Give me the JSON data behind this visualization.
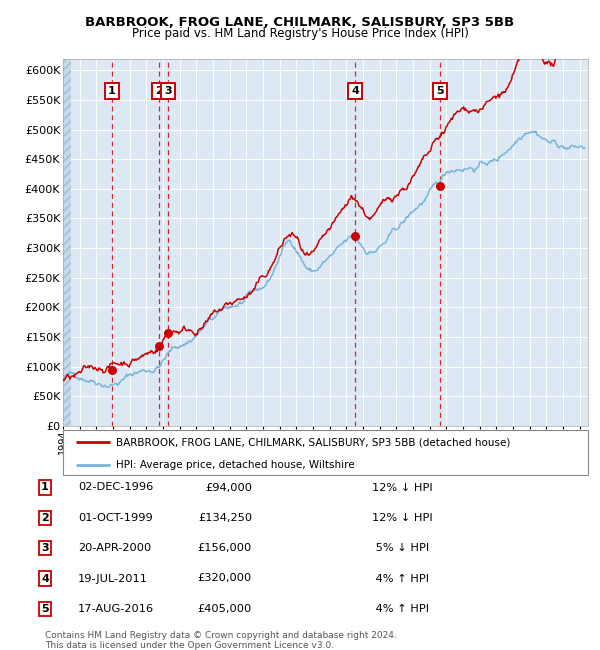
{
  "title": "BARBROOK, FROG LANE, CHILMARK, SALISBURY, SP3 5BB",
  "subtitle": "Price paid vs. HM Land Registry's House Price Index (HPI)",
  "ylabel_ticks": [
    "£0",
    "£50K",
    "£100K",
    "£150K",
    "£200K",
    "£250K",
    "£300K",
    "£350K",
    "£400K",
    "£450K",
    "£500K",
    "£550K",
    "£600K"
  ],
  "ytick_values": [
    0,
    50000,
    100000,
    150000,
    200000,
    250000,
    300000,
    350000,
    400000,
    450000,
    500000,
    550000,
    600000
  ],
  "ylim": [
    0,
    620000
  ],
  "xlim_start": 1994.0,
  "xlim_end": 2025.5,
  "plot_bg_color": "#dce9f5",
  "hpi_line_color": "#7ab3d9",
  "price_line_color": "#cc0000",
  "sale_marker_color": "#cc0000",
  "sale_vline_color": "#dd0000",
  "grid_color": "#ffffff",
  "transactions": [
    {
      "id": 1,
      "year": 1996.92,
      "price": 94000
    },
    {
      "id": 2,
      "year": 1999.75,
      "price": 134250
    },
    {
      "id": 3,
      "year": 2000.3,
      "price": 156000
    },
    {
      "id": 4,
      "year": 2011.54,
      "price": 320000
    },
    {
      "id": 5,
      "year": 2016.63,
      "price": 405000
    }
  ],
  "legend_line1": "BARBROOK, FROG LANE, CHILMARK, SALISBURY, SP3 5BB (detached house)",
  "legend_line2": "HPI: Average price, detached house, Wiltshire",
  "footer_line1": "Contains HM Land Registry data © Crown copyright and database right 2024.",
  "footer_line2": "This data is licensed under the Open Government Licence v3.0.",
  "table_rows": [
    {
      "id": 1,
      "date": "02-DEC-1996",
      "price": "£94,000",
      "info": "12% ↓ HPI"
    },
    {
      "id": 2,
      "date": "01-OCT-1999",
      "price": "£134,250",
      "info": "12% ↓ HPI"
    },
    {
      "id": 3,
      "date": "20-APR-2000",
      "price": "£156,000",
      "info": " 5% ↓ HPI"
    },
    {
      "id": 4,
      "date": "19-JUL-2011",
      "price": "£320,000",
      "info": " 4% ↑ HPI"
    },
    {
      "id": 5,
      "date": "17-AUG-2016",
      "price": "£405,000",
      "info": " 4% ↑ HPI"
    }
  ]
}
